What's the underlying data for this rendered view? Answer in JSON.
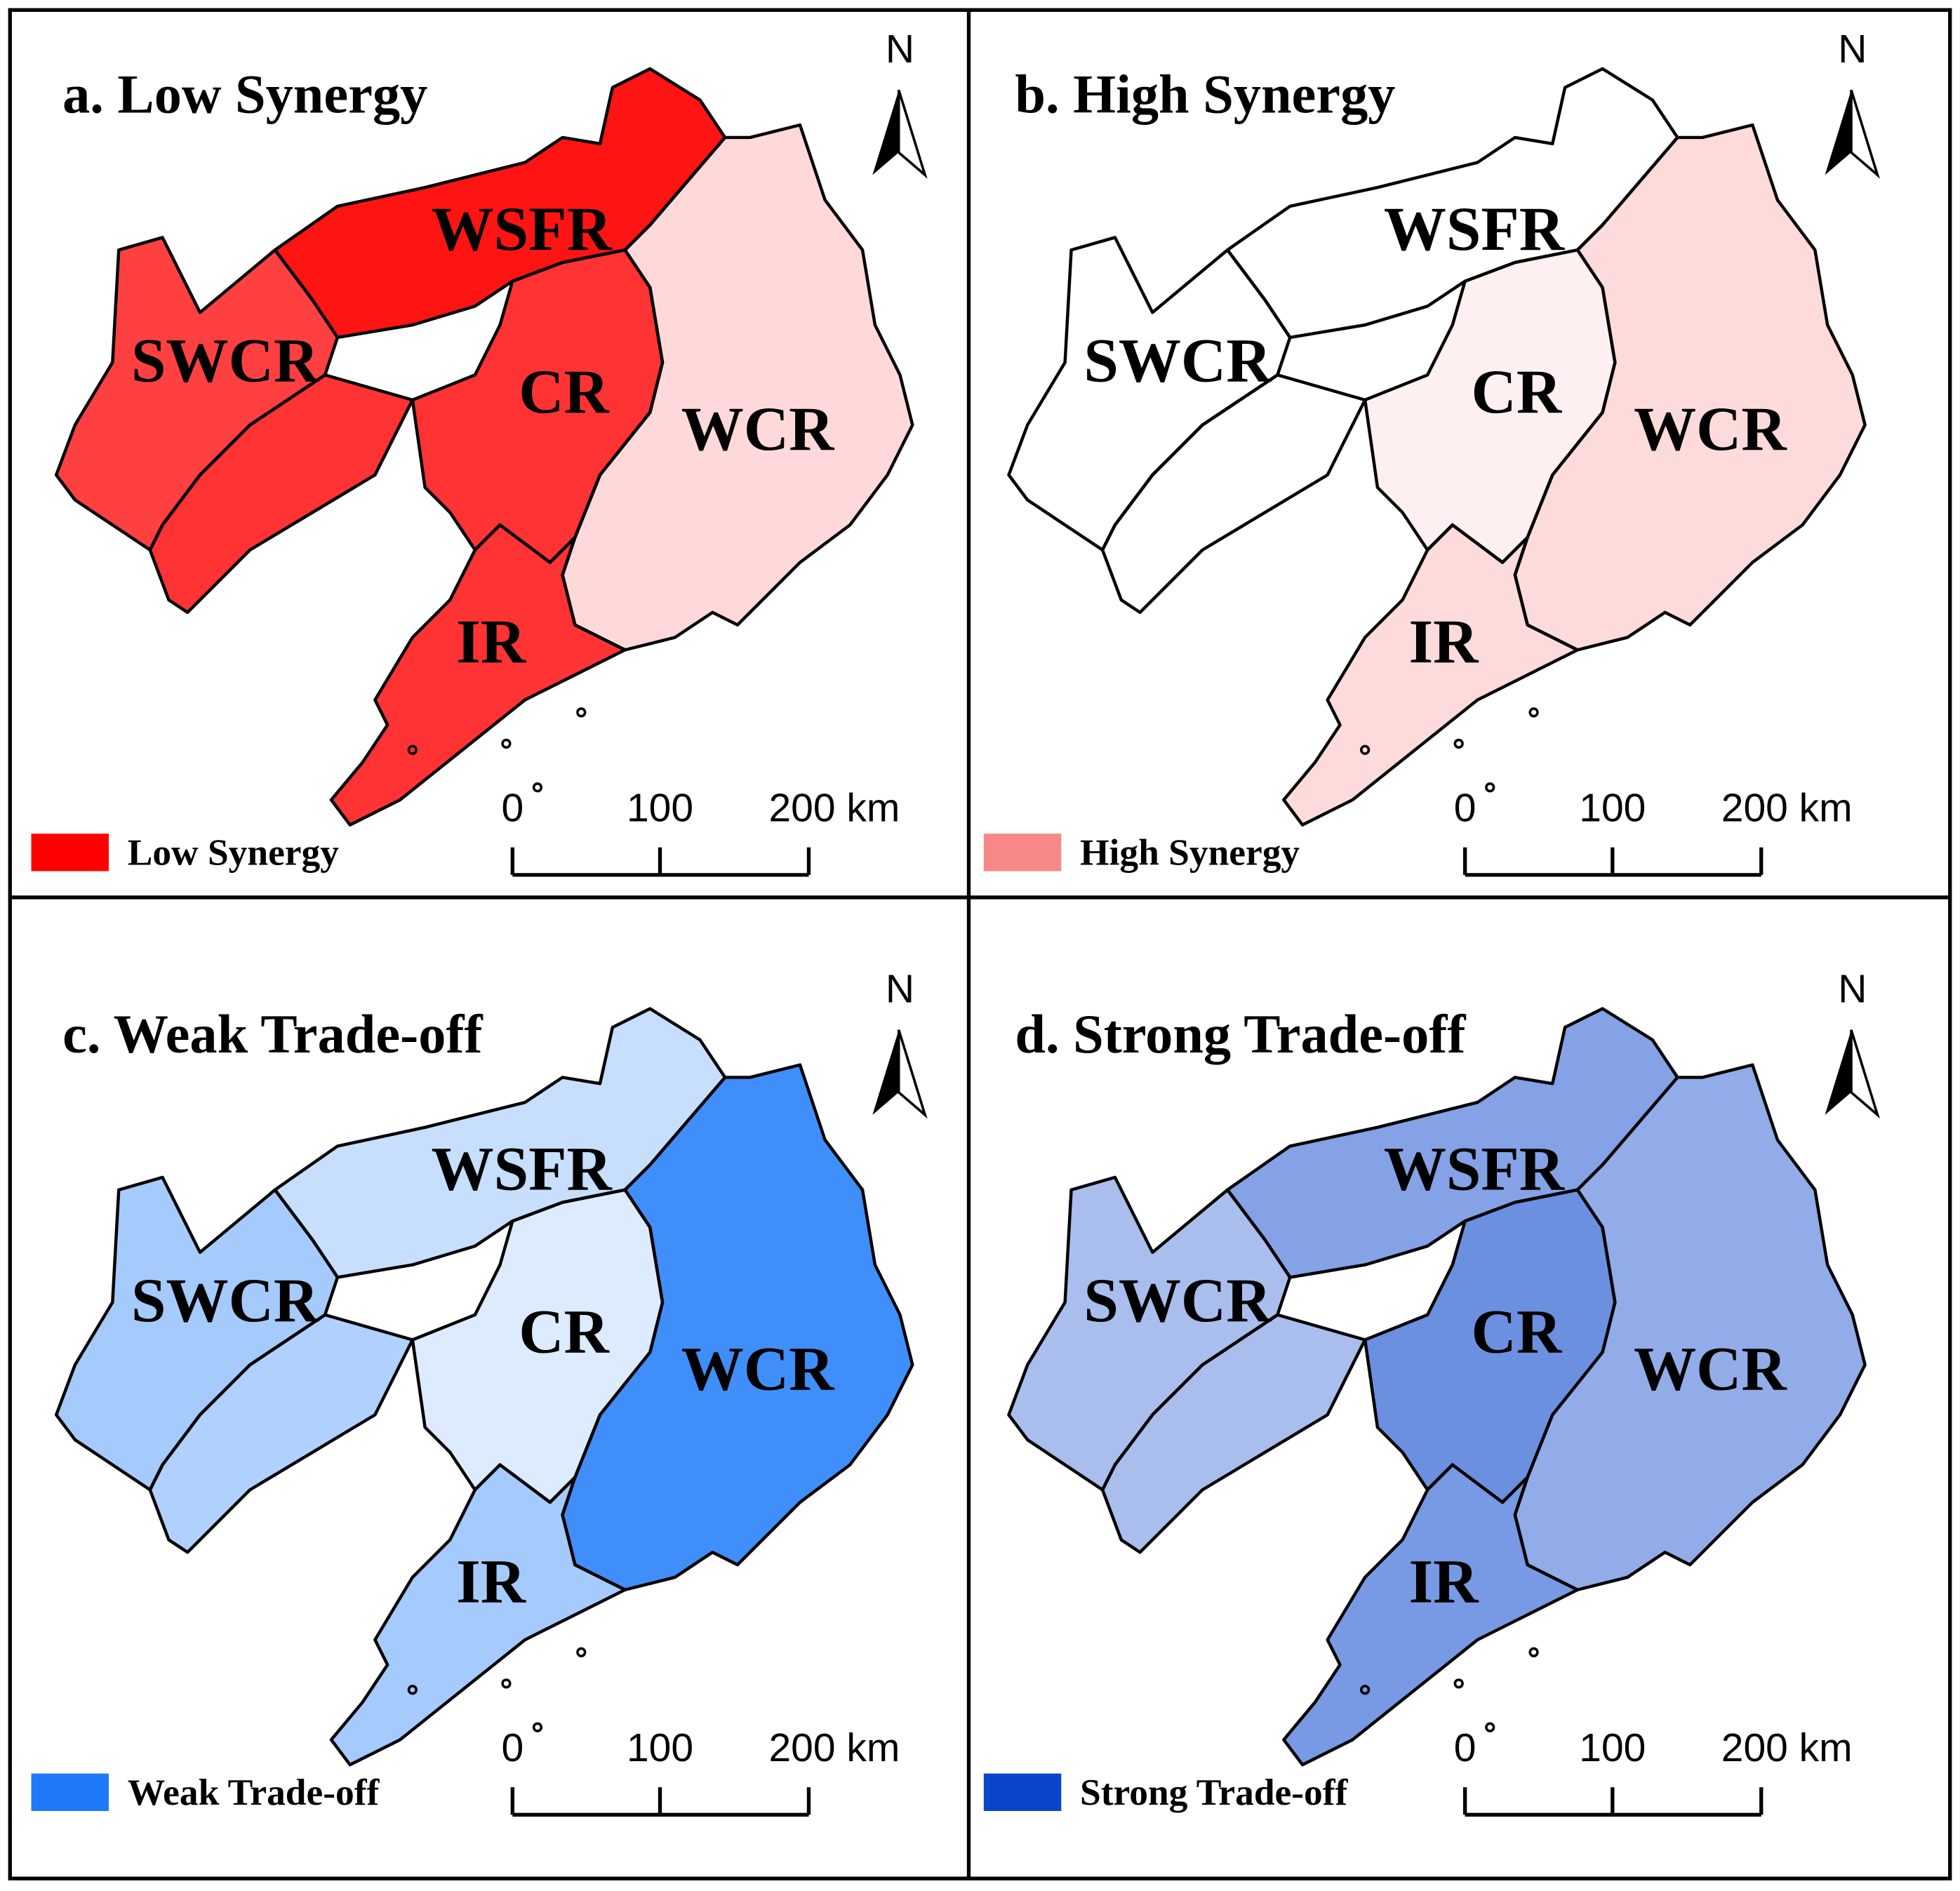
{
  "panels": [
    {
      "title": "a. Low Synergy",
      "legend": "Low Synergy",
      "color": "#ff0000"
    },
    {
      "title": "b. High Synergy",
      "legend": "High Synergy",
      "color": "#f88787"
    },
    {
      "title": "c. Weak Trade-off",
      "legend": "Weak Trade-off",
      "color": "#1e7af8"
    },
    {
      "title": "d. Strong Trade-off",
      "legend": "Strong Trade-off",
      "color": "#0a46cc"
    }
  ],
  "regions": [
    "WSFR",
    "SWCR",
    "CR",
    "WCR",
    "IR"
  ],
  "scale_bar": [
    "0",
    "100",
    "200 km"
  ],
  "north": "N"
}
